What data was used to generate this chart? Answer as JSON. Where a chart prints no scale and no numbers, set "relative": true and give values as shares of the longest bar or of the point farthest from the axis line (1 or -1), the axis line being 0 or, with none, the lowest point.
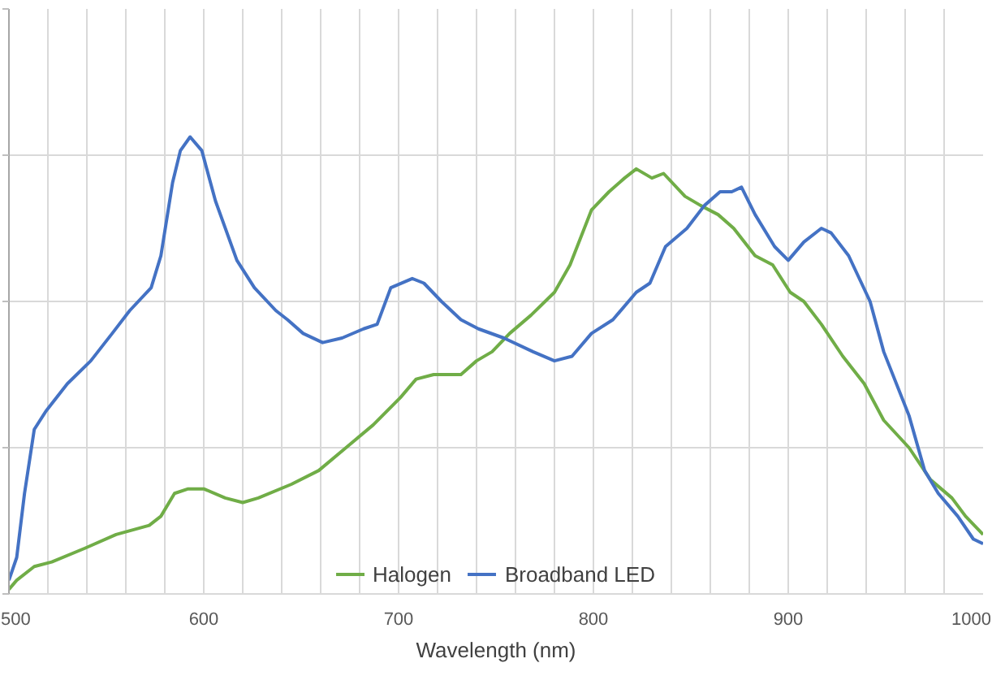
{
  "chart_data": {
    "type": "line",
    "xlabel": "Wavelength (nm)",
    "relative": true,
    "grid": true,
    "legend": "bottom",
    "marker": "none",
    "line_style": "solid",
    "xlim": [
      500,
      1000
    ],
    "xticks": [
      500,
      {
        "value": 520,
        "label": null
      },
      {
        "value": 540,
        "label": null
      },
      {
        "value": 560,
        "label": null
      },
      {
        "value": 580,
        "label": null
      },
      600,
      {
        "value": 620,
        "label": null
      },
      {
        "value": 640,
        "label": null
      },
      {
        "value": 660,
        "label": null
      },
      {
        "value": 680,
        "label": null
      },
      700,
      {
        "value": 720,
        "label": null
      },
      {
        "value": 740,
        "label": null
      },
      {
        "value": 760,
        "label": null
      },
      {
        "value": 780,
        "label": null
      },
      800,
      {
        "value": 820,
        "label": null
      },
      {
        "value": 840,
        "label": null
      },
      {
        "value": 860,
        "label": null
      },
      {
        "value": 880,
        "label": null
      },
      900,
      {
        "value": 920,
        "label": null
      },
      {
        "value": 940,
        "label": null
      },
      {
        "value": 960,
        "label": null
      },
      {
        "value": 980,
        "label": null
      },
      1000
    ],
    "series": [
      {
        "name": "Halogen",
        "color": "#70ad47",
        "x": [
          500,
          504,
          513,
          522,
          539,
          555,
          572,
          578,
          585,
          592,
          600,
          611,
          620,
          628,
          645,
          659,
          673,
          687,
          701,
          709,
          718,
          723,
          732,
          740,
          748,
          757,
          768,
          780,
          788,
          799,
          808,
          816,
          822,
          830,
          836,
          847,
          855,
          864,
          872,
          883,
          892,
          901,
          908,
          917,
          928,
          939,
          949,
          962,
          973,
          984,
          991,
          1000
        ],
        "values": [
          0.01,
          0.03,
          0.06,
          0.07,
          0.1,
          0.13,
          0.15,
          0.17,
          0.22,
          0.23,
          0.23,
          0.21,
          0.2,
          0.21,
          0.24,
          0.27,
          0.32,
          0.37,
          0.43,
          0.47,
          0.48,
          0.48,
          0.48,
          0.51,
          0.53,
          0.57,
          0.61,
          0.66,
          0.72,
          0.84,
          0.88,
          0.91,
          0.93,
          0.91,
          0.92,
          0.87,
          0.85,
          0.83,
          0.8,
          0.74,
          0.72,
          0.66,
          0.64,
          0.59,
          0.52,
          0.46,
          0.38,
          0.32,
          0.25,
          0.21,
          0.17,
          0.13
        ]
      },
      {
        "name": "Broadband LED",
        "color": "#4472c4",
        "x": [
          500,
          504,
          508,
          513,
          519,
          530,
          542,
          553,
          562,
          573,
          578,
          584,
          588,
          593,
          599,
          606,
          617,
          626,
          637,
          643,
          651,
          661,
          671,
          682,
          689,
          696,
          707,
          713,
          722,
          732,
          741,
          754,
          769,
          780,
          789,
          799,
          810,
          822,
          829,
          837,
          848,
          857,
          865,
          871,
          876,
          883,
          893,
          900,
          908,
          917,
          922,
          931,
          942,
          949,
          962,
          970,
          977,
          987,
          995,
          1000
        ],
        "values": [
          0.03,
          0.08,
          0.22,
          0.36,
          0.4,
          0.46,
          0.51,
          0.57,
          0.62,
          0.67,
          0.74,
          0.9,
          0.97,
          1.0,
          0.97,
          0.86,
          0.73,
          0.67,
          0.62,
          0.6,
          0.57,
          0.55,
          0.56,
          0.58,
          0.59,
          0.67,
          0.69,
          0.68,
          0.64,
          0.6,
          0.58,
          0.56,
          0.53,
          0.51,
          0.52,
          0.57,
          0.6,
          0.66,
          0.68,
          0.76,
          0.8,
          0.85,
          0.88,
          0.88,
          0.89,
          0.83,
          0.76,
          0.73,
          0.77,
          0.8,
          0.79,
          0.74,
          0.64,
          0.53,
          0.39,
          0.27,
          0.22,
          0.17,
          0.12,
          0.11
        ]
      }
    ]
  }
}
